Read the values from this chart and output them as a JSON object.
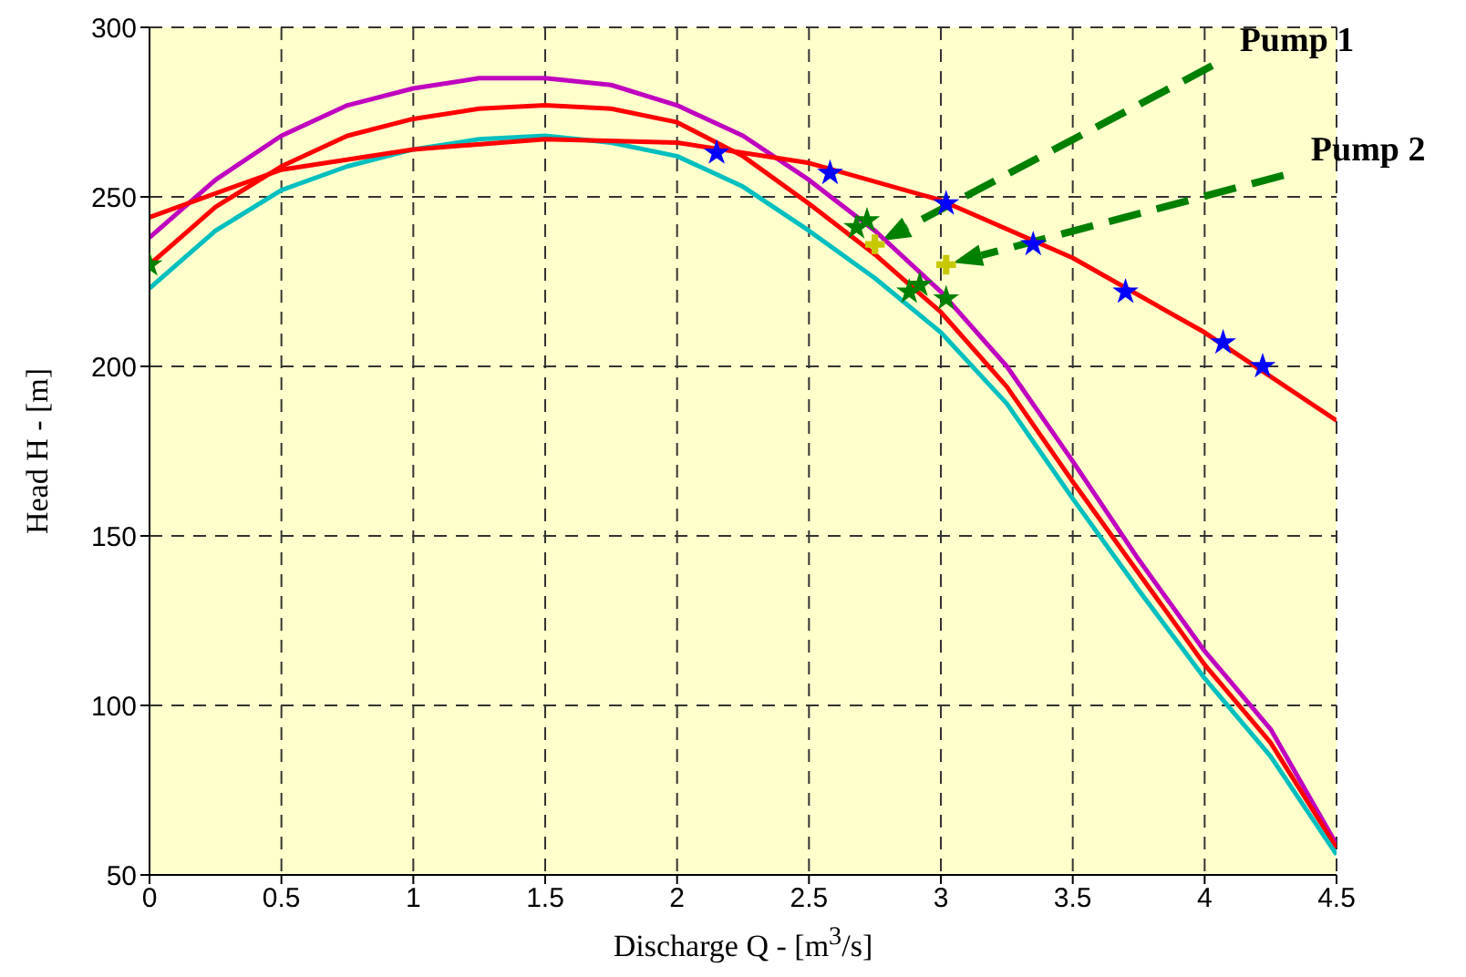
{
  "chart_data": {
    "type": "line",
    "xlabel": "Discharge Q - [m$^{3}$/s]",
    "ylabel": "Head H - [m]",
    "xlim": [
      0,
      4.5
    ],
    "xticks": [
      0,
      0.5,
      1,
      1.5,
      2,
      2.5,
      3,
      3.5,
      4,
      4.5
    ],
    "ylim": [
      50,
      300
    ],
    "yticks": [
      50,
      100,
      150,
      200,
      250,
      300
    ],
    "grid": true,
    "legend": false,
    "line_style": "solid",
    "series": [
      {
        "type": "line",
        "color": "#bf00bf",
        "x": [
          0,
          0.25,
          0.5,
          0.75,
          1,
          1.25,
          1.5,
          1.75,
          2,
          2.25,
          2.5,
          2.75,
          3,
          3.25,
          3.5,
          3.75,
          4,
          4.25,
          4.5
        ],
        "values": [
          238,
          255,
          268,
          277,
          282,
          285,
          285,
          283,
          277,
          268,
          255,
          240,
          222,
          200,
          172,
          143,
          116,
          93,
          59
        ]
      },
      {
        "type": "line",
        "color": "#ff0000",
        "x": [
          0,
          0.25,
          0.5,
          0.75,
          1,
          1.25,
          1.5,
          1.75,
          2,
          2.25,
          2.5,
          2.75,
          3,
          3.25,
          3.5,
          3.75,
          4,
          4.25,
          4.5
        ],
        "values": [
          230,
          247,
          259,
          268,
          273,
          276,
          277,
          276,
          272,
          262,
          248,
          233,
          216,
          194,
          166,
          139,
          112,
          89,
          58
        ]
      },
      {
        "type": "line",
        "color": "#00bfbf",
        "x": [
          0,
          0.25,
          0.5,
          0.75,
          1,
          1.25,
          1.5,
          1.75,
          2,
          2.25,
          2.5,
          2.75,
          3,
          3.25,
          3.5,
          3.75,
          4,
          4.25,
          4.5
        ],
        "values": [
          223,
          240,
          252,
          259,
          264,
          267,
          268,
          266,
          262,
          253,
          240,
          226,
          210,
          189,
          161,
          134,
          108,
          85,
          56
        ]
      },
      {
        "type": "line",
        "color": "#ff0000",
        "x": [
          0,
          0.5,
          1,
          1.5,
          2,
          2.5,
          3,
          3.5,
          4,
          4.5
        ],
        "values": [
          244,
          258,
          264,
          267,
          266,
          260,
          249,
          232,
          210,
          184
        ]
      },
      {
        "type": "scatter",
        "marker": "star",
        "color": "#0000ff",
        "x": [
          2.15,
          2.58,
          3.02,
          3.35,
          3.7,
          4.07,
          4.22
        ],
        "values": [
          263,
          257,
          248,
          236,
          222,
          207,
          200
        ]
      },
      {
        "type": "scatter",
        "marker": "star",
        "color": "#008000",
        "x": [
          0,
          2.68,
          2.72,
          2.88,
          2.92,
          3.02
        ],
        "values": [
          230,
          241,
          243,
          222,
          224,
          220
        ]
      },
      {
        "type": "scatter",
        "marker": "cross",
        "color": "#c8c800",
        "x": [
          2.75,
          3.02
        ],
        "values": [
          236,
          230
        ]
      }
    ],
    "annotations": [
      "Pump 1",
      "Pump 2"
    ]
  }
}
